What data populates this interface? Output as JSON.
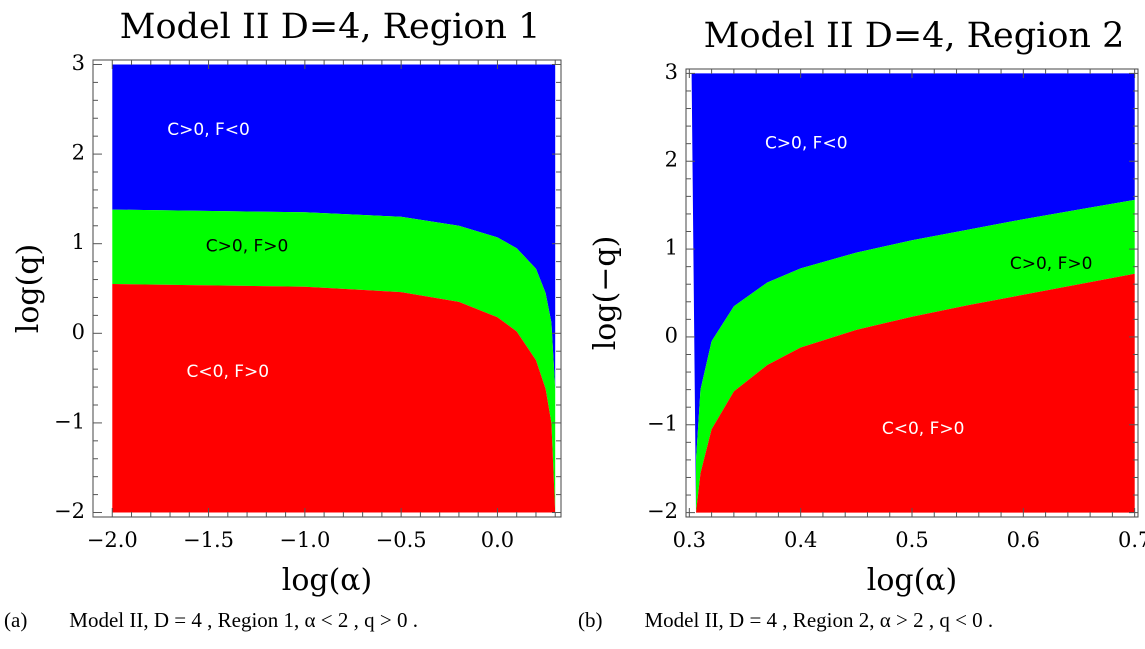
{
  "chart_data": [
    {
      "type": "area",
      "title": "Model II D=4, Region 1",
      "xlabel": "log(α)",
      "ylabel": "log(q)",
      "xlim": [
        -2.1,
        0.33
      ],
      "ylim": [
        -2.05,
        3.05
      ],
      "xticks": [
        -2.0,
        -1.5,
        -1.0,
        -0.5,
        0.0
      ],
      "xtick_labels": [
        "−2.0",
        "−1.5",
        "−1.0",
        "−0.5",
        "0.0"
      ],
      "yticks": [
        -2,
        -1,
        0,
        1,
        2,
        3
      ],
      "ytick_labels": [
        "−2",
        "−1",
        "0",
        "1",
        "2",
        "3"
      ],
      "plot_range": {
        "x": [
          -2.0,
          0.3
        ],
        "y": [
          -2.0,
          3.0
        ]
      },
      "grid": false,
      "regions": [
        {
          "name": "C>0, F<0",
          "color": "#0000ff",
          "label_at": [
            -1.5,
            2.27
          ],
          "label_color": "#ffffff"
        },
        {
          "name": "C>0, F>0",
          "color": "#00ff00",
          "label_at": [
            -1.3,
            0.97
          ],
          "label_color": "#000000"
        },
        {
          "name": "C<0, F>0",
          "color": "#ff0000",
          "label_at": [
            -1.4,
            -0.43
          ],
          "label_color": "#ffffff"
        }
      ],
      "boundaries": {
        "upper": {
          "x": [
            -2.0,
            -1.0,
            -0.5,
            -0.2,
            0.0,
            0.1,
            0.2,
            0.25,
            0.28,
            0.3
          ],
          "y": [
            1.38,
            1.35,
            1.3,
            1.2,
            1.07,
            0.95,
            0.72,
            0.45,
            0.12,
            -0.62
          ]
        },
        "lower": {
          "x": [
            -2.0,
            -1.0,
            -0.5,
            -0.2,
            0.0,
            0.1,
            0.2,
            0.25,
            0.28,
            0.3
          ],
          "y": [
            0.55,
            0.52,
            0.46,
            0.35,
            0.18,
            0.02,
            -0.3,
            -0.62,
            -1.0,
            -2.0
          ]
        }
      }
    },
    {
      "type": "area",
      "title": "Model II D=4, Region 2",
      "xlabel": "log(α)",
      "ylabel": "log(−q)",
      "xlim": [
        0.297,
        0.703
      ],
      "ylim": [
        -2.05,
        3.05
      ],
      "xticks": [
        0.3,
        0.4,
        0.5,
        0.6,
        0.7
      ],
      "xtick_labels": [
        "0.3",
        "0.4",
        "0.5",
        "0.6",
        "0.7"
      ],
      "yticks": [
        -2,
        -1,
        0,
        1,
        2,
        3
      ],
      "ytick_labels": [
        "−2",
        "−1",
        "0",
        "1",
        "2",
        "3"
      ],
      "plot_range": {
        "x": [
          0.302,
          0.7
        ],
        "y": [
          -2.0,
          3.0
        ]
      },
      "grid": false,
      "regions": [
        {
          "name": "C>0, F<0",
          "color": "#0000ff",
          "label_at": [
            0.405,
            2.2
          ],
          "label_color": "#ffffff"
        },
        {
          "name": "C>0, F>0",
          "color": "#00ff00",
          "label_at": [
            0.625,
            0.83
          ],
          "label_color": "#000000"
        },
        {
          "name": "C<0, F>0",
          "color": "#ff0000",
          "label_at": [
            0.51,
            -1.05
          ],
          "label_color": "#ffffff"
        }
      ],
      "boundaries": {
        "upper": {
          "x": [
            0.306,
            0.31,
            0.32,
            0.34,
            0.37,
            0.4,
            0.45,
            0.5,
            0.55,
            0.6,
            0.65,
            0.7
          ],
          "y": [
            -1.4,
            -0.6,
            -0.05,
            0.35,
            0.62,
            0.78,
            0.96,
            1.1,
            1.22,
            1.34,
            1.45,
            1.56
          ]
        },
        "lower": {
          "x": [
            0.306,
            0.31,
            0.32,
            0.34,
            0.37,
            0.4,
            0.45,
            0.5,
            0.55,
            0.6,
            0.65,
            0.7
          ],
          "y": [
            -2.0,
            -1.55,
            -1.05,
            -0.62,
            -0.32,
            -0.12,
            0.08,
            0.23,
            0.36,
            0.48,
            0.6,
            0.72
          ]
        }
      }
    }
  ],
  "captions": [
    {
      "text": "(a)  Model II,  D = 4 , Region 1,  α < 2 ,  q > 0 ."
    },
    {
      "text": "(b)  Model II,  D = 4 , Region 2,  α > 2 ,  q < 0 ."
    }
  ]
}
